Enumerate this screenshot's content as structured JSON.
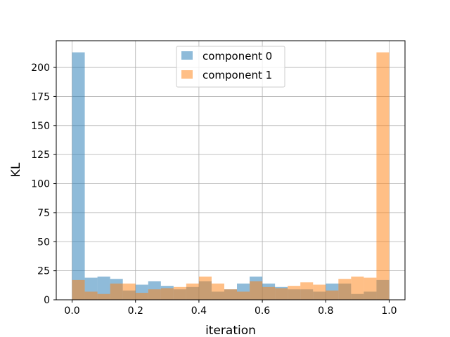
{
  "chart_data": {
    "type": "histogram",
    "title": "",
    "xlabel": "iteration",
    "ylabel": "KL",
    "xlim": [
      -0.05,
      1.05
    ],
    "ylim": [
      0,
      223
    ],
    "xticks": [
      0.0,
      0.2,
      0.4,
      0.6,
      0.8,
      1.0
    ],
    "xtick_labels": [
      "0.0",
      "0.2",
      "0.4",
      "0.6",
      "0.8",
      "1.0"
    ],
    "yticks": [
      0,
      25,
      50,
      75,
      100,
      125,
      150,
      175,
      200
    ],
    "ytick_labels": [
      "0",
      "25",
      "50",
      "75",
      "100",
      "125",
      "150",
      "175",
      "200"
    ],
    "grid": true,
    "legend_position": "top-center",
    "bin_edges": [
      0.0,
      0.04,
      0.08,
      0.12,
      0.16,
      0.2,
      0.24,
      0.28,
      0.32,
      0.36,
      0.4,
      0.44,
      0.48,
      0.52,
      0.56,
      0.6,
      0.64,
      0.68,
      0.72,
      0.76,
      0.8,
      0.84,
      0.88,
      0.92,
      0.96,
      1.0
    ],
    "series": [
      {
        "name": "component 0",
        "color": "#1f77b4",
        "alpha": 0.5,
        "values": [
          213,
          19,
          20,
          18,
          8,
          13,
          16,
          12,
          9,
          11,
          16,
          7,
          9,
          14,
          20,
          14,
          11,
          9,
          9,
          7,
          14,
          14,
          5,
          7,
          17
        ]
      },
      {
        "name": "component 1",
        "color": "#ff7f0e",
        "alpha": 0.5,
        "values": [
          17,
          7,
          5,
          14,
          14,
          6,
          9,
          10,
          11,
          14,
          20,
          14,
          9,
          7,
          16,
          11,
          10,
          12,
          15,
          13,
          8,
          18,
          20,
          19,
          213
        ]
      }
    ]
  }
}
